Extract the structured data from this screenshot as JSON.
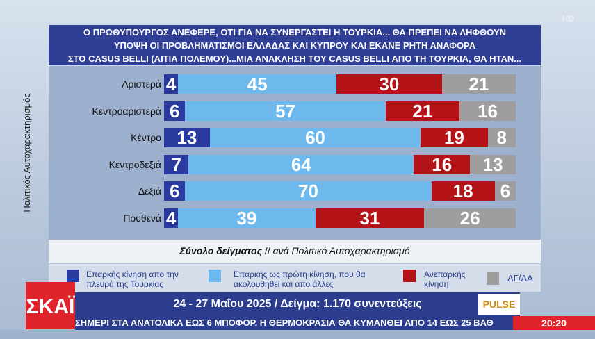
{
  "broadcast": {
    "hd_badge": "HD",
    "channel_logo": "ΣΚΑΪ",
    "date_sample": "24 - 27 Μαΐου 2025 / Δείγμα: 1.170 συνεντεύξεις",
    "pollster_logo": "PULSE",
    "ticker": "ΣΗΜΕΡΙ ΣΤΑ ΑΝΑΤΟΛΙΚΑ ΕΩΣ 6 ΜΠΟΦΟΡ. Η ΘΕΡΜΟΚΡΑΣΙΑ ΘΑ ΚΥΜΑΝΘΕΙ ΑΠΟ 14 ΕΩΣ 25 ΒΑΘ",
    "clock": "20:20"
  },
  "chart_data": {
    "type": "bar",
    "stacked": true,
    "orientation": "horizontal",
    "title_lines": [
      "Ο ΠΡΩΘΥΠΟΥΡΓΟΣ ΑΝΕΦΕΡΕ, ΟΤΙ ΓΙΑ ΝΑ ΣΥΝΕΡΓΑΣΤΕΙ Η ΤΟΥΡΚΙΑ... ΘΑ ΠΡΕΠΕΙ ΝΑ ΛΗΦΘΟΥΝ",
      "ΥΠΟΨΗ ΟΙ ΠΡΟΒΛΗΜΑΤΙΣΜΟΙ ΕΛΛΑΔΑΣ ΚΑΙ ΚΥΠΡΟΥ ΚΑΙ ΕΚΑΝΕ ΡΗΤΗ ΑΝΑΦΟΡΑ",
      "ΣΤΟ CASUS BELLI (ΑΙΤΙΑ ΠΟΛΕΜΟΥ)...ΜΙΑ ΑΝΑΚΛΗΣΗ ΤΟΥ CASUS BELLI ΑΠΟ ΤΗ ΤΟΥΡΚΙΑ, ΘΑ ΗΤΑΝ..."
    ],
    "ylabel": "Πολιτικός Αυτοχαρακτηρισμός",
    "subtitle_main": "Σύνολο δείγματος",
    "subtitle_sep": " // ",
    "subtitle_rest": "ανά Πολιτικό Αυτοχαρακτηρισμό",
    "categories": [
      "Αριστερά",
      "Κεντροαριστερά",
      "Κέντρο",
      "Κεντροδεξιά",
      "Δεξιά",
      "Πουθενά"
    ],
    "series": [
      {
        "name": "Επαρκής κίνηση από την πλευρά της Τουρκίας",
        "legend_lines": [
          "Επαρκής κίνηση απο την",
          "πλευρά της Τουρκίας"
        ],
        "color": "#2b3a9e",
        "values": [
          4,
          6,
          13,
          7,
          6,
          4
        ]
      },
      {
        "name": "Επαρκής ως πρώτη κίνηση, που θα ακολουθηθεί και από άλλες",
        "legend_lines": [
          "Επαρκής ως πρώτη κίνηση, που θα",
          "ακολουθηθεί και απο άλλες"
        ],
        "color": "#6db8ec",
        "values": [
          45,
          57,
          60,
          64,
          70,
          39
        ]
      },
      {
        "name": "Ανεπαρκής κίνηση",
        "legend_lines": [
          "Ανεπαρκής",
          "κίνηση"
        ],
        "color": "#b31217",
        "values": [
          30,
          21,
          19,
          16,
          18,
          31
        ]
      },
      {
        "name": "ΔΓ/ΔΑ",
        "legend_lines": [
          "ΔΓ/ΔΑ"
        ],
        "color": "#9e9e9e",
        "values": [
          21,
          16,
          8,
          13,
          6,
          26
        ]
      }
    ],
    "xlim": [
      0,
      100
    ],
    "unit": "%"
  }
}
